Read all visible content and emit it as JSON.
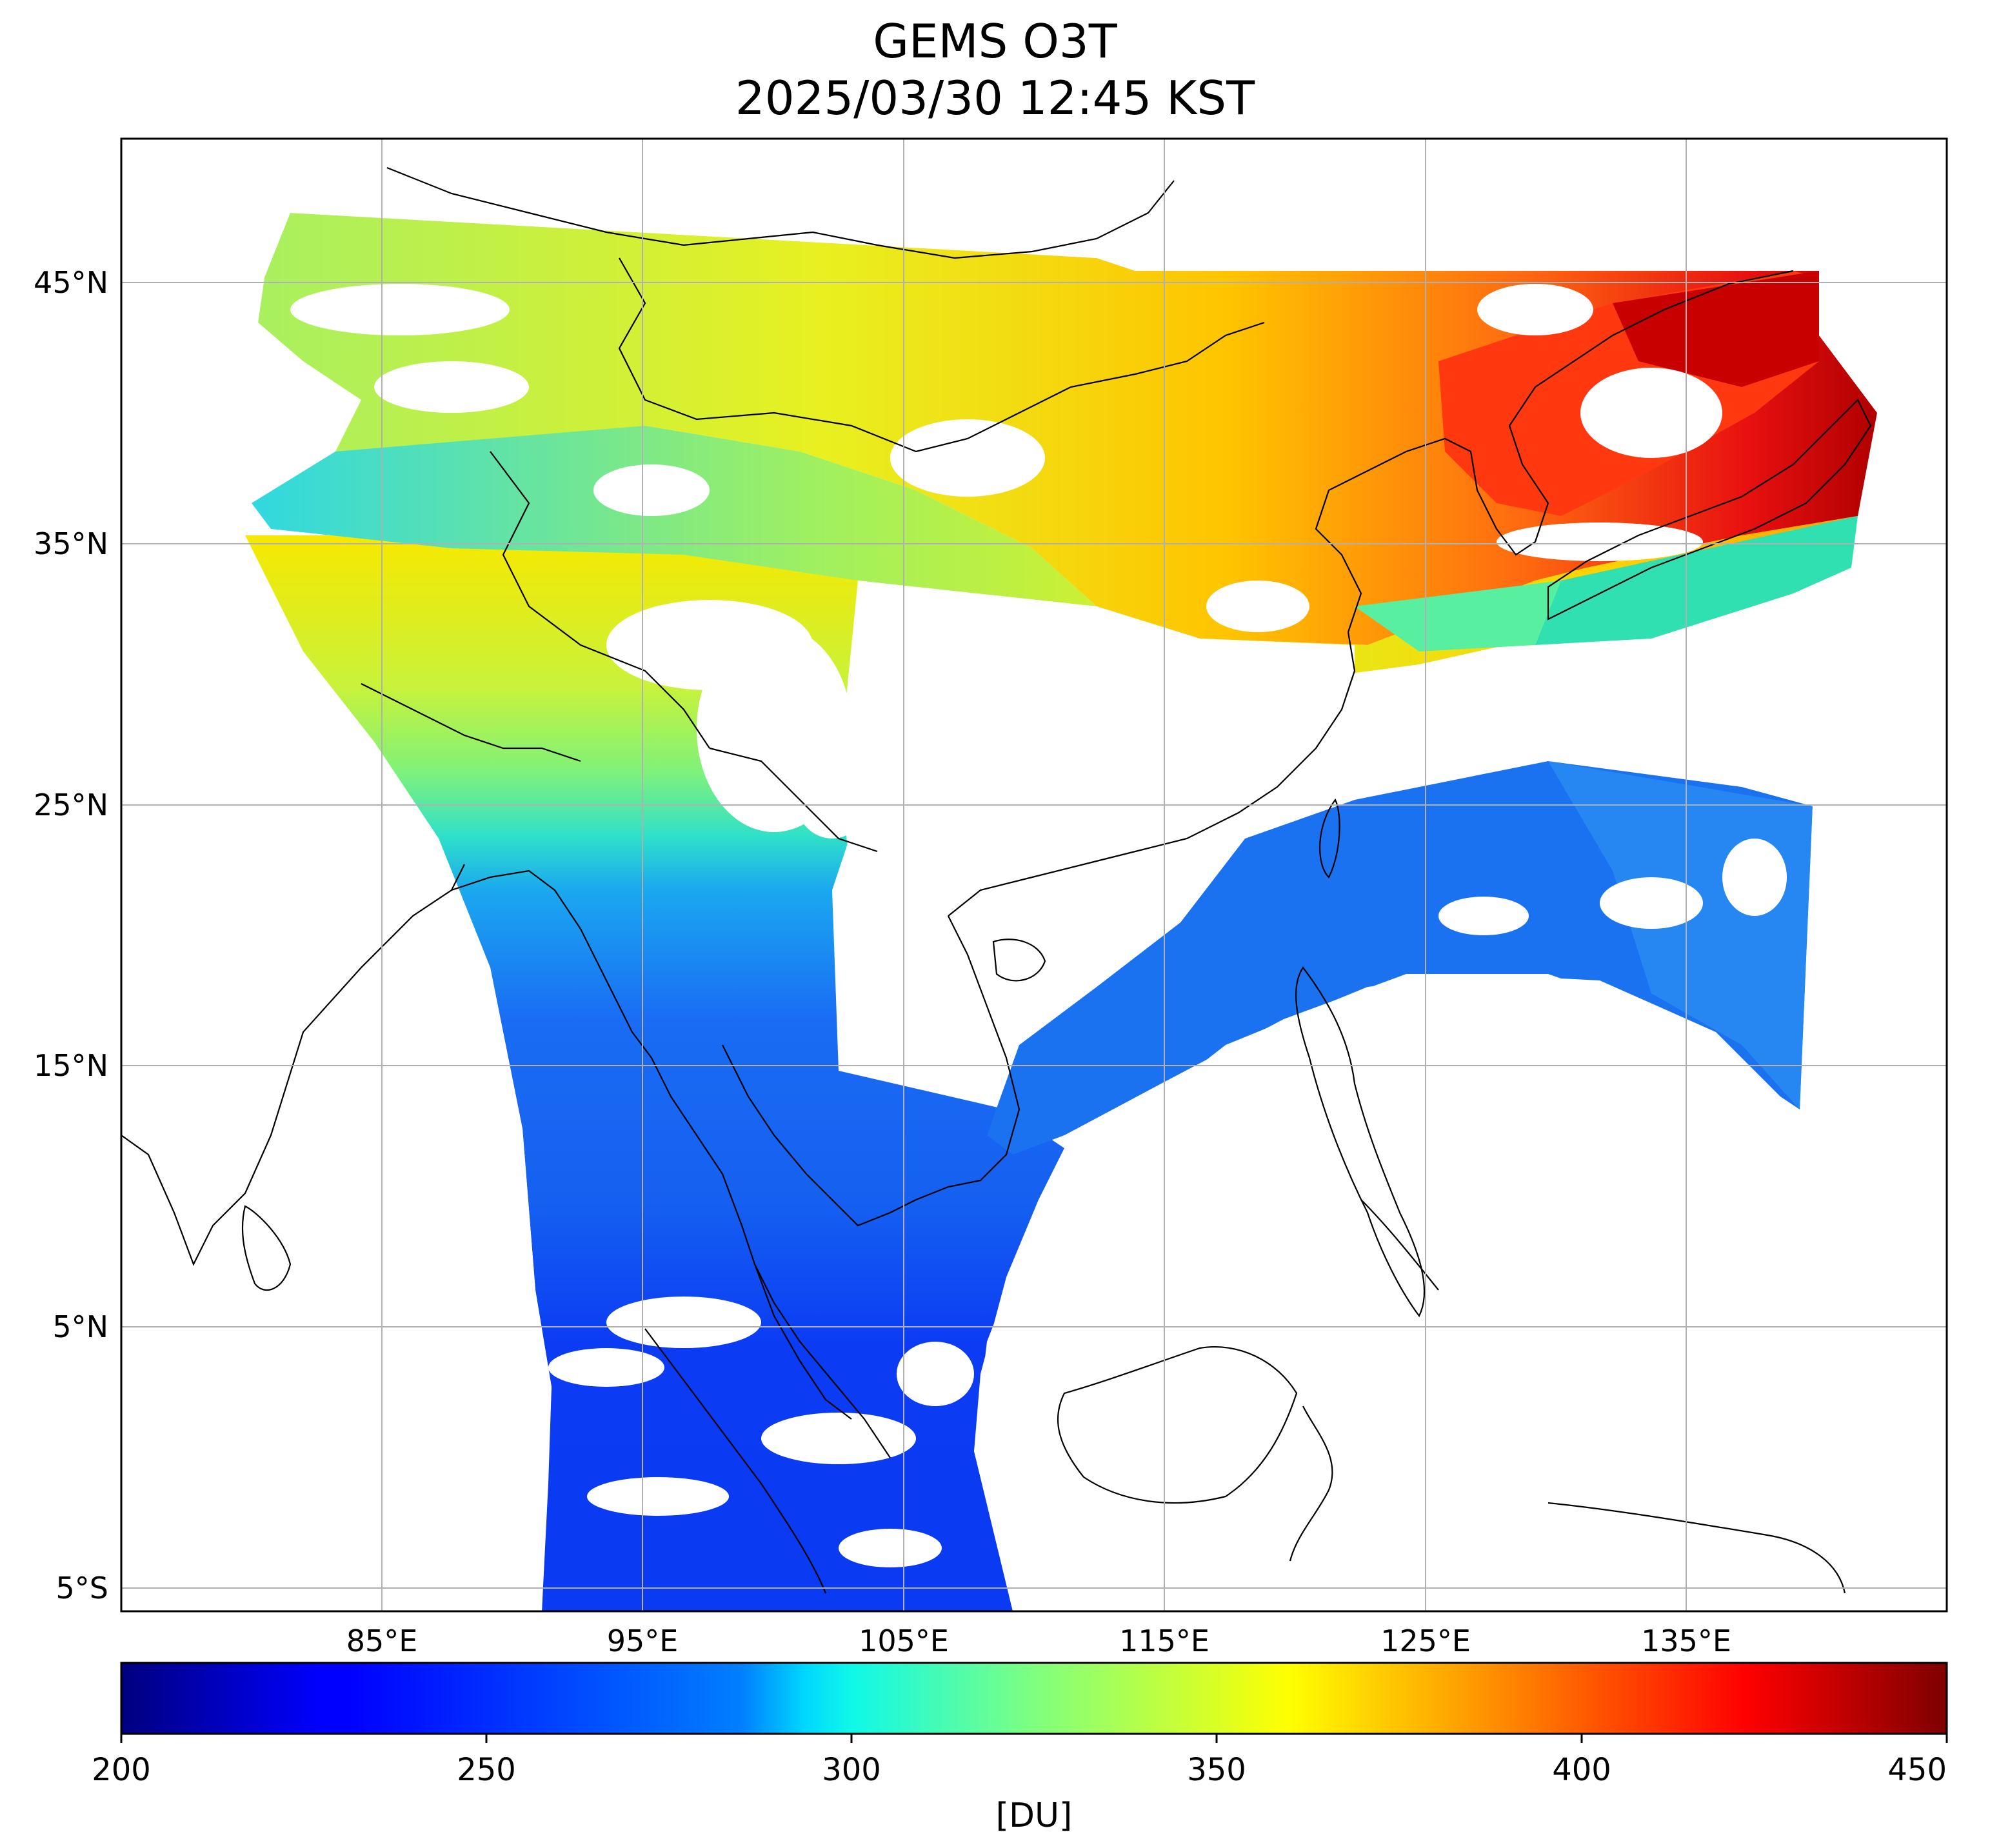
{
  "title": {
    "line1": "GEMS O3T",
    "line2": "2025/03/30 12:45 KST"
  },
  "map": {
    "lat_labels": [
      "45°N",
      "35°N",
      "25°N",
      "15°N",
      "5°N",
      "5°S"
    ],
    "lon_labels": [
      "85°E",
      "95°E",
      "105°E",
      "115°E",
      "125°E",
      "135°E"
    ],
    "gridlines": true
  },
  "colorbar": {
    "ticks": [
      "200",
      "250",
      "300",
      "350",
      "400",
      "450"
    ],
    "unit": "[DU]",
    "range": [
      200,
      450
    ],
    "colormap": "jet",
    "colors": [
      "#00007f",
      "#0000ff",
      "#007fff",
      "#00ffff",
      "#7fff7f",
      "#ffff00",
      "#ff7f00",
      "#ff0000",
      "#7f0000"
    ]
  }
}
